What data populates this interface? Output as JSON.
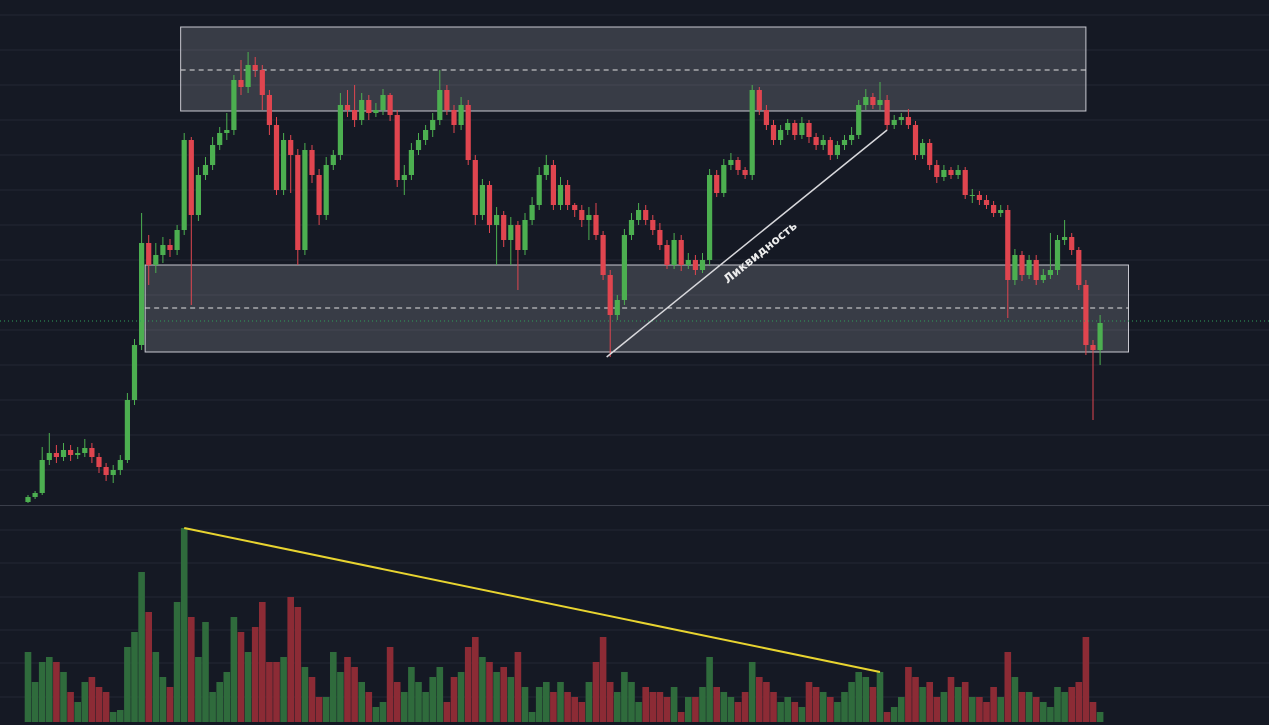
{
  "chart_data": {
    "type": "candlestick",
    "up_color": "#4caf50",
    "down_color": "#e0454f",
    "volume_up_color": "#2f6b3c",
    "volume_down_color": "#8c2b35",
    "ylim": [
      0,
      505
    ],
    "yticks": [
      35,
      70,
      105,
      140,
      175,
      210,
      245,
      280,
      315,
      350,
      385,
      420,
      455,
      490
    ],
    "grid": true,
    "ohlc": [
      [
        3,
        10,
        2,
        8
      ],
      [
        8,
        14,
        6,
        12
      ],
      [
        12,
        58,
        10,
        45
      ],
      [
        45,
        72,
        40,
        52
      ],
      [
        52,
        60,
        42,
        48
      ],
      [
        48,
        62,
        44,
        55
      ],
      [
        55,
        60,
        44,
        50
      ],
      [
        50,
        58,
        46,
        52
      ],
      [
        52,
        66,
        48,
        57
      ],
      [
        57,
        62,
        42,
        48
      ],
      [
        48,
        52,
        32,
        38
      ],
      [
        38,
        42,
        24,
        30
      ],
      [
        30,
        40,
        22,
        35
      ],
      [
        35,
        50,
        30,
        45
      ],
      [
        45,
        112,
        42,
        105
      ],
      [
        105,
        166,
        100,
        160
      ],
      [
        160,
        292,
        155,
        262
      ],
      [
        262,
        270,
        220,
        240
      ],
      [
        240,
        262,
        232,
        250
      ],
      [
        250,
        268,
        242,
        260
      ],
      [
        260,
        266,
        248,
        255
      ],
      [
        255,
        280,
        250,
        275
      ],
      [
        275,
        372,
        270,
        365
      ],
      [
        365,
        368,
        200,
        290
      ],
      [
        290,
        338,
        284,
        330
      ],
      [
        330,
        348,
        325,
        340
      ],
      [
        340,
        368,
        335,
        360
      ],
      [
        360,
        378,
        355,
        372
      ],
      [
        372,
        392,
        365,
        375
      ],
      [
        375,
        430,
        370,
        425
      ],
      [
        425,
        445,
        410,
        418
      ],
      [
        418,
        453,
        412,
        440
      ],
      [
        440,
        448,
        428,
        435
      ],
      [
        435,
        440,
        395,
        410
      ],
      [
        410,
        415,
        370,
        380
      ],
      [
        380,
        388,
        310,
        315
      ],
      [
        315,
        372,
        310,
        365
      ],
      [
        365,
        370,
        312,
        350
      ],
      [
        350,
        356,
        240,
        255
      ],
      [
        255,
        362,
        250,
        355
      ],
      [
        355,
        360,
        322,
        330
      ],
      [
        330,
        336,
        280,
        290
      ],
      [
        290,
        348,
        285,
        340
      ],
      [
        340,
        355,
        335,
        350
      ],
      [
        350,
        412,
        345,
        400
      ],
      [
        400,
        415,
        388,
        395
      ],
      [
        395,
        420,
        378,
        385
      ],
      [
        385,
        412,
        380,
        405
      ],
      [
        405,
        410,
        385,
        392
      ],
      [
        392,
        402,
        388,
        395
      ],
      [
        395,
        416,
        390,
        410
      ],
      [
        410,
        412,
        384,
        390
      ],
      [
        390,
        395,
        318,
        325
      ],
      [
        325,
        340,
        310,
        330
      ],
      [
        330,
        362,
        325,
        355
      ],
      [
        355,
        372,
        350,
        365
      ],
      [
        365,
        380,
        360,
        375
      ],
      [
        375,
        392,
        368,
        385
      ],
      [
        385,
        435,
        380,
        415
      ],
      [
        415,
        420,
        390,
        395
      ],
      [
        395,
        400,
        372,
        380
      ],
      [
        380,
        408,
        375,
        400
      ],
      [
        400,
        405,
        340,
        345
      ],
      [
        345,
        350,
        280,
        290
      ],
      [
        290,
        326,
        285,
        320
      ],
      [
        320,
        324,
        272,
        280
      ],
      [
        280,
        298,
        240,
        290
      ],
      [
        290,
        294,
        258,
        265
      ],
      [
        265,
        288,
        240,
        280
      ],
      [
        280,
        284,
        215,
        255
      ],
      [
        255,
        292,
        250,
        285
      ],
      [
        285,
        308,
        280,
        300
      ],
      [
        300,
        338,
        295,
        330
      ],
      [
        330,
        350,
        325,
        340
      ],
      [
        340,
        345,
        295,
        300
      ],
      [
        300,
        328,
        295,
        320
      ],
      [
        320,
        325,
        295,
        300
      ],
      [
        300,
        302,
        288,
        295
      ],
      [
        295,
        300,
        278,
        285
      ],
      [
        285,
        298,
        265,
        290
      ],
      [
        290,
        302,
        265,
        270
      ],
      [
        270,
        274,
        225,
        230
      ],
      [
        230,
        235,
        148,
        190
      ],
      [
        190,
        210,
        185,
        205
      ],
      [
        205,
        276,
        200,
        270
      ],
      [
        270,
        292,
        265,
        285
      ],
      [
        285,
        302,
        280,
        295
      ],
      [
        295,
        300,
        280,
        285
      ],
      [
        285,
        290,
        270,
        275
      ],
      [
        275,
        282,
        255,
        260
      ],
      [
        260,
        265,
        236,
        240
      ],
      [
        240,
        272,
        236,
        265
      ],
      [
        265,
        270,
        234,
        240
      ],
      [
        240,
        252,
        236,
        245
      ],
      [
        245,
        250,
        230,
        235
      ],
      [
        235,
        252,
        232,
        245
      ],
      [
        245,
        336,
        240,
        330
      ],
      [
        330,
        335,
        308,
        312
      ],
      [
        312,
        346,
        308,
        340
      ],
      [
        340,
        352,
        335,
        345
      ],
      [
        345,
        348,
        330,
        335
      ],
      [
        335,
        338,
        326,
        330
      ],
      [
        330,
        420,
        325,
        415
      ],
      [
        415,
        418,
        390,
        395
      ],
      [
        395,
        400,
        375,
        380
      ],
      [
        380,
        385,
        360,
        365
      ],
      [
        365,
        380,
        360,
        375
      ],
      [
        375,
        386,
        370,
        382
      ],
      [
        382,
        385,
        365,
        370
      ],
      [
        370,
        388,
        366,
        382
      ],
      [
        382,
        385,
        362,
        368
      ],
      [
        368,
        372,
        355,
        360
      ],
      [
        360,
        370,
        355,
        365
      ],
      [
        365,
        368,
        345,
        350
      ],
      [
        350,
        364,
        346,
        360
      ],
      [
        360,
        370,
        355,
        365
      ],
      [
        365,
        378,
        360,
        370
      ],
      [
        370,
        405,
        366,
        400
      ],
      [
        400,
        416,
        395,
        408
      ],
      [
        408,
        412,
        396,
        400
      ],
      [
        400,
        423,
        395,
        405
      ],
      [
        405,
        410,
        375,
        380
      ],
      [
        380,
        390,
        376,
        385
      ],
      [
        385,
        392,
        380,
        388
      ],
      [
        388,
        396,
        376,
        380
      ],
      [
        380,
        384,
        345,
        350
      ],
      [
        350,
        366,
        346,
        362
      ],
      [
        362,
        366,
        335,
        340
      ],
      [
        340,
        345,
        322,
        328
      ],
      [
        328,
        340,
        324,
        335
      ],
      [
        335,
        338,
        326,
        330
      ],
      [
        330,
        340,
        326,
        335
      ],
      [
        335,
        338,
        306,
        310
      ],
      [
        310,
        316,
        302,
        310
      ],
      [
        310,
        314,
        300,
        305
      ],
      [
        305,
        310,
        296,
        300
      ],
      [
        300,
        304,
        288,
        292
      ],
      [
        292,
        300,
        288,
        295
      ],
      [
        295,
        300,
        187,
        225
      ],
      [
        225,
        256,
        220,
        250
      ],
      [
        250,
        254,
        224,
        230
      ],
      [
        230,
        250,
        226,
        245
      ],
      [
        245,
        250,
        220,
        225
      ],
      [
        225,
        236,
        222,
        230
      ],
      [
        230,
        272,
        226,
        235
      ],
      [
        235,
        270,
        230,
        265
      ],
      [
        265,
        285,
        260,
        268
      ],
      [
        268,
        272,
        250,
        255
      ],
      [
        255,
        258,
        215,
        220
      ],
      [
        220,
        225,
        150,
        160
      ],
      [
        160,
        165,
        85,
        155
      ],
      [
        155,
        190,
        140,
        182
      ]
    ],
    "volume": {
      "ylim": [
        0,
        200
      ],
      "yticks": [
        25,
        59,
        92,
        125,
        159,
        192
      ],
      "values": [
        70,
        40,
        60,
        65,
        60,
        50,
        30,
        20,
        40,
        45,
        35,
        30,
        10,
        12,
        75,
        90,
        150,
        110,
        70,
        45,
        35,
        120,
        194,
        105,
        65,
        100,
        30,
        40,
        50,
        105,
        90,
        70,
        95,
        120,
        60,
        60,
        65,
        125,
        115,
        55,
        45,
        25,
        25,
        70,
        50,
        65,
        55,
        40,
        30,
        15,
        20,
        75,
        40,
        30,
        55,
        40,
        30,
        45,
        55,
        20,
        45,
        50,
        75,
        85,
        65,
        60,
        50,
        55,
        45,
        70,
        35,
        10,
        35,
        40,
        30,
        40,
        30,
        25,
        20,
        40,
        60,
        85,
        40,
        30,
        50,
        40,
        20,
        35,
        30,
        30,
        25,
        35,
        10,
        25,
        25,
        35,
        65,
        35,
        30,
        25,
        20,
        30,
        60,
        45,
        40,
        30,
        20,
        25,
        20,
        15,
        40,
        35,
        30,
        25,
        20,
        30,
        40,
        50,
        45,
        35,
        50,
        10,
        15,
        25,
        55,
        45,
        35,
        40,
        25,
        30,
        45,
        35,
        40,
        25,
        25,
        20,
        35,
        25,
        70,
        45,
        30,
        30,
        25,
        20,
        15,
        35,
        30,
        35,
        40,
        85,
        20,
        10
      ]
    },
    "zones": [
      {
        "x": [
          21.5,
          149
        ],
        "y": [
          394,
          478
        ],
        "mid": 435
      },
      {
        "x": [
          16.5,
          155
        ],
        "y": [
          153,
          240
        ],
        "mid": 197
      }
    ],
    "zone_color": "#c8c8d0",
    "liquidity_line": {
      "x": [
        81.5,
        121
      ],
      "y": [
        148,
        375
      ],
      "label": "Ликвидность",
      "color": "#d8d8dc"
    },
    "volume_trend": {
      "x": [
        22,
        120
      ],
      "y": [
        194,
        50
      ],
      "color": "#e8d430"
    },
    "last_price": 184,
    "last_price_color": "#2e9e5b"
  }
}
